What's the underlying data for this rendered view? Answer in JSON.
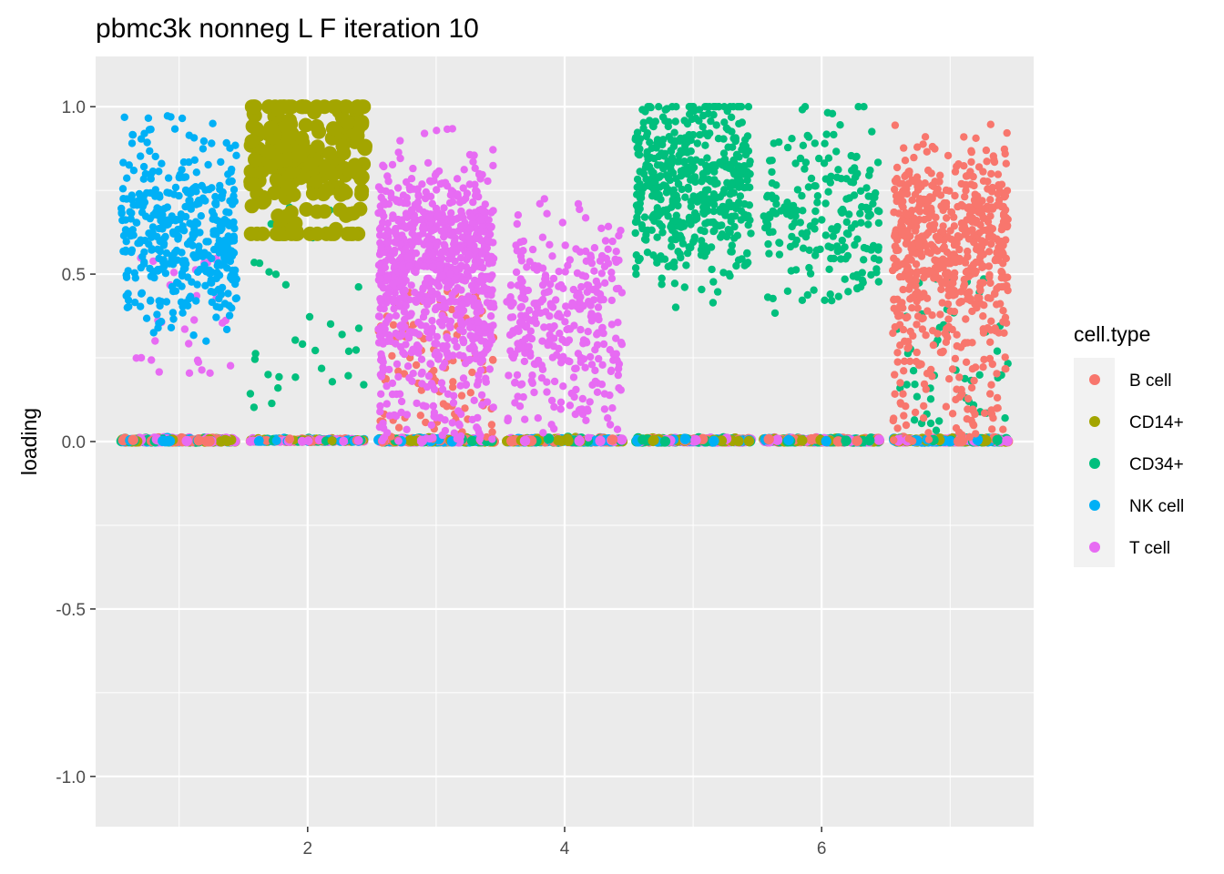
{
  "chart_data": {
    "type": "scatter",
    "title": "pbmc3k nonneg L F iteration 10",
    "xlabel": "",
    "ylabel": "loading",
    "xlim": [
      0.35,
      7.65
    ],
    "ylim": [
      -1.15,
      1.15
    ],
    "x_ticks": [
      2,
      4,
      6
    ],
    "x_tick_labels": [
      "2",
      "4",
      "6"
    ],
    "y_ticks": [
      -1.0,
      -0.5,
      0.0,
      0.5,
      1.0
    ],
    "y_tick_labels": [
      "-1.0",
      "-0.5",
      "0.0",
      "0.5",
      "1.0"
    ],
    "grid": true,
    "jitter_width": 0.45,
    "legend": {
      "title": "cell.type",
      "position": "right",
      "entries": [
        {
          "name": "B cell",
          "color": "#F8766D"
        },
        {
          "name": "CD14+",
          "color": "#A3A500"
        },
        {
          "name": "CD34+",
          "color": "#00BF7D"
        },
        {
          "name": "NK cell",
          "color": "#00B0F6"
        },
        {
          "name": "T cell",
          "color": "#E76BF3"
        }
      ]
    },
    "components": [
      {
        "x": 1,
        "high_cell_type": "NK cell",
        "high_range": [
          0.3,
          1.0
        ],
        "high_center": 0.62,
        "n_high": 420,
        "also_mid": [
          {
            "type": "T cell",
            "n": 30,
            "range": [
              0.2,
              0.55
            ]
          }
        ],
        "big_points": false
      },
      {
        "x": 2,
        "high_cell_type": "CD14+",
        "high_range": [
          0.62,
          1.0
        ],
        "high_center": 0.83,
        "n_high": 230,
        "also_mid": [
          {
            "type": "CD34+",
            "n": 35,
            "range": [
              0.1,
              0.7
            ]
          }
        ],
        "big_points": true
      },
      {
        "x": 3,
        "high_cell_type": "T cell",
        "high_range": [
          0.0,
          1.0
        ],
        "high_center": 0.55,
        "n_high": 900,
        "also_mid": [
          {
            "type": "B cell",
            "n": 110,
            "range": [
              0.0,
              0.45
            ]
          }
        ],
        "big_points": false
      },
      {
        "x": 4,
        "high_cell_type": "T cell",
        "high_range": [
          0.0,
          1.0
        ],
        "high_center": 0.4,
        "n_high": 330,
        "also_mid": [],
        "big_points": false
      },
      {
        "x": 5,
        "high_cell_type": "CD34+",
        "high_range": [
          0.3,
          1.0
        ],
        "high_center": 0.77,
        "n_high": 520,
        "also_mid": [],
        "big_points": false
      },
      {
        "x": 6,
        "high_cell_type": "CD34+",
        "high_range": [
          0.3,
          1.0
        ],
        "high_center": 0.68,
        "n_high": 210,
        "also_mid": [],
        "big_points": false
      },
      {
        "x": 7,
        "high_cell_type": "B cell",
        "high_range": [
          0.0,
          1.0
        ],
        "high_center": 0.6,
        "n_high": 680,
        "also_mid": [
          {
            "type": "CD34+",
            "n": 50,
            "range": [
              0.0,
              0.5
            ]
          }
        ],
        "big_points": false
      }
    ],
    "near_zero_points_per_component": 260
  }
}
